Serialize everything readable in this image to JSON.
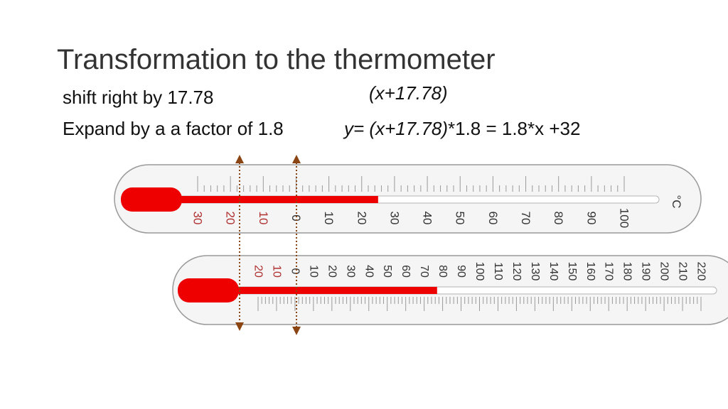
{
  "slide": {
    "title": "Transformation to the thermometer",
    "line1_text": "shift right by 17.78",
    "line1_formula": "(x+17.78)",
    "line2_text": "Expand by a a factor of 1.8",
    "line2_formula_italic": "y= (x+17.78)",
    "line2_formula_rest": "*1.8 = 1.8*x +32"
  },
  "celsius_thermometer": {
    "unit_label": "°C",
    "negative_labels": [
      "30",
      "20",
      "10"
    ],
    "positive_labels": [
      "0",
      "10",
      "20",
      "30",
      "40",
      "50",
      "60",
      "70",
      "80",
      "90",
      "100"
    ],
    "scale_min": -30,
    "scale_max": 100,
    "reading": 25,
    "colors": {
      "fill": "#ee0000",
      "negative_label": "#b03030",
      "label": "#333333",
      "body": "#f4f4f4"
    }
  },
  "fahrenheit_thermometer": {
    "negative_labels": [
      "20",
      "10"
    ],
    "positive_labels": [
      "0",
      "10",
      "20",
      "30",
      "40",
      "50",
      "60",
      "70",
      "80",
      "90",
      "100",
      "110",
      "120",
      "130",
      "140",
      "150",
      "160",
      "170",
      "180",
      "190",
      "200",
      "210",
      "220"
    ],
    "scale_min": -20,
    "scale_max": 220,
    "reading": 77,
    "colors": {
      "fill": "#ee0000",
      "negative_label": "#b03030",
      "label": "#333333",
      "body": "#f4f4f4"
    }
  },
  "guides": {
    "color": "#8b4513",
    "style": "dotted double-headed arrows"
  }
}
